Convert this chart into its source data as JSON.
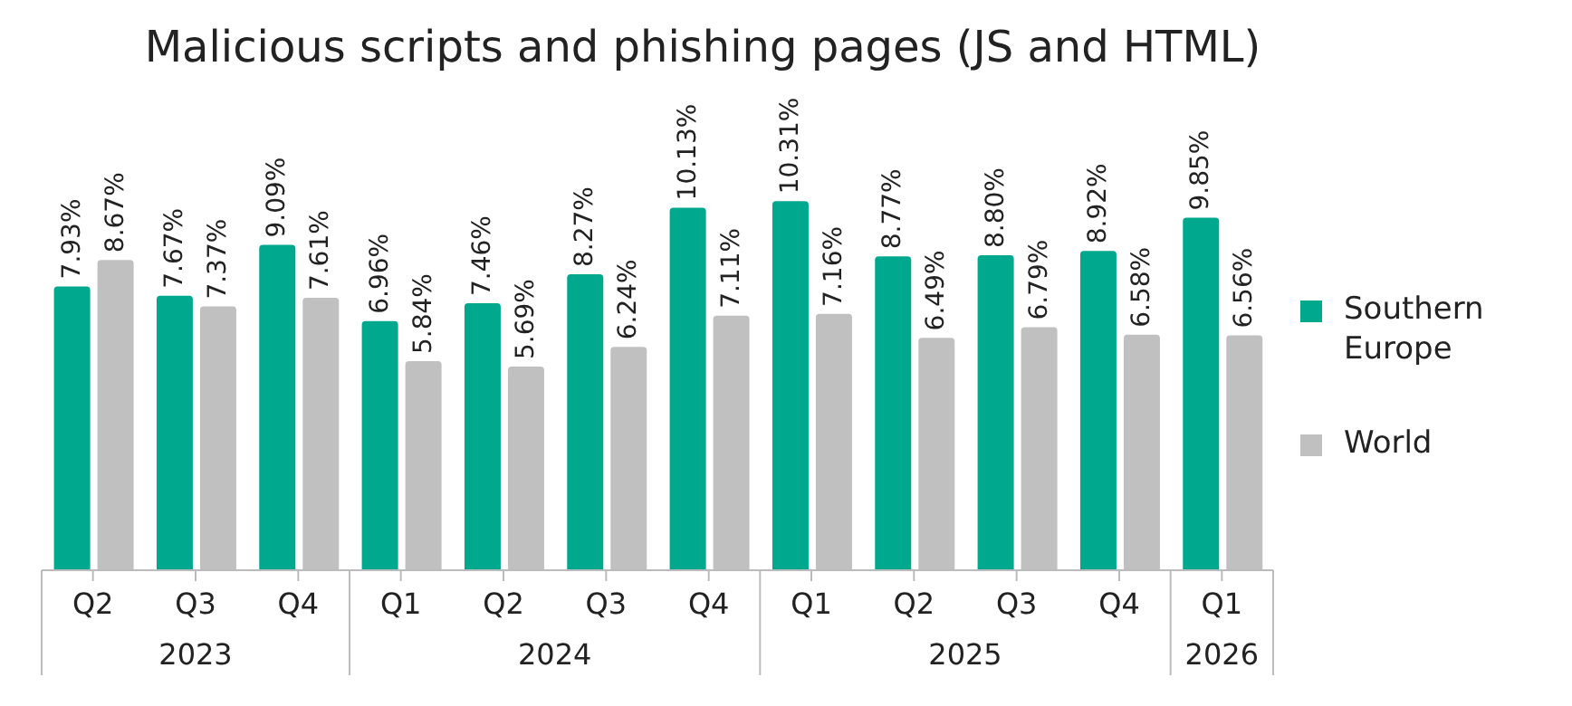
{
  "chart_data": {
    "type": "bar",
    "title": "Malicious scripts and phishing pages (JS and HTML)",
    "categories": [
      "Q2",
      "Q3",
      "Q4",
      "Q1",
      "Q2",
      "Q3",
      "Q4",
      "Q1",
      "Q2",
      "Q3",
      "Q4",
      "Q1"
    ],
    "annotations": [
      "2023",
      "2024",
      "2025",
      "2026"
    ],
    "series": [
      {
        "name": "Southern Europe",
        "color": "#00a88e",
        "values": [
          7.93,
          7.67,
          9.09,
          6.96,
          7.46,
          8.27,
          10.13,
          10.31,
          8.77,
          8.8,
          8.92,
          9.85
        ],
        "value_labels": [
          "7.93%",
          "7.67%",
          "9.09%",
          "6.96%",
          "7.46%",
          "8.27%",
          "10.13%",
          "10.31%",
          "8.77%",
          "8.80%",
          "8.92%",
          "9.85%"
        ]
      },
      {
        "name": "World",
        "color": "#c0c0c0",
        "values": [
          8.67,
          7.37,
          7.61,
          5.84,
          5.69,
          6.24,
          7.11,
          7.16,
          6.49,
          6.79,
          6.58,
          6.56
        ],
        "value_labels": [
          "8.67%",
          "7.37%",
          "7.61%",
          "5.84%",
          "5.69%",
          "6.24%",
          "7.11%",
          "7.16%",
          "6.49%",
          "6.79%",
          "6.58%",
          "6.56%"
        ]
      }
    ],
    "legend": "right"
  }
}
